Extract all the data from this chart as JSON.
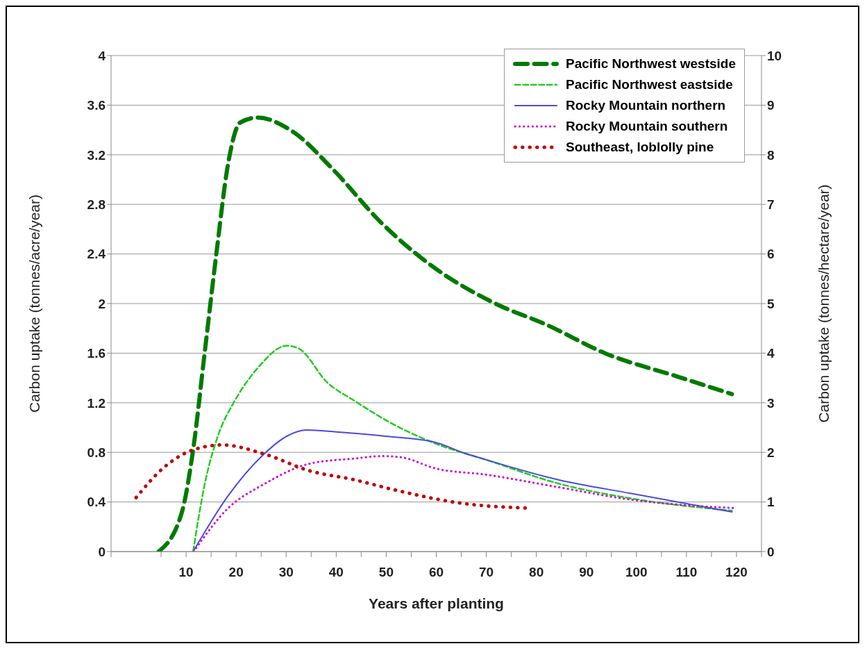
{
  "chart_data": {
    "type": "line",
    "xlabel": "Years after planting",
    "ylabel": "Carbon uptake (tonnes/acre/year)",
    "y2label": "Carbon uptake (tonnes/hectare/year)",
    "xlim": [
      -5,
      125
    ],
    "xticks": [
      {
        "value": -5,
        "label": null
      },
      {
        "value": 5,
        "label": null
      },
      10,
      {
        "value": 15,
        "label": null
      },
      20,
      {
        "value": 25,
        "label": null
      },
      30,
      {
        "value": 35,
        "label": null
      },
      40,
      {
        "value": 45,
        "label": null
      },
      50,
      {
        "value": 55,
        "label": null
      },
      60,
      {
        "value": 65,
        "label": null
      },
      70,
      {
        "value": 75,
        "label": null
      },
      80,
      {
        "value": 85,
        "label": null
      },
      90,
      {
        "value": 95,
        "label": null
      },
      100,
      {
        "value": 105,
        "label": null
      },
      110,
      {
        "value": 115,
        "label": null
      },
      120,
      {
        "value": 125,
        "label": null
      }
    ],
    "ylim": [
      0,
      4
    ],
    "yticks": [
      0,
      0.4,
      0.8,
      1.2,
      1.6,
      2,
      2.4,
      2.8,
      3.2,
      3.6,
      4
    ],
    "y2lim": [
      0,
      10
    ],
    "y2ticks": [
      0,
      1,
      2,
      3,
      4,
      5,
      6,
      7,
      8,
      9,
      10
    ],
    "grid": "y",
    "legend": "top right",
    "marker": "none",
    "series": [
      {
        "name": "Pacific Northwest westside",
        "color": "#007a00",
        "line_style": "dashed",
        "x": [
          4.5,
          9.1,
          11.4,
          13.7,
          16.1,
          18.4,
          20.8,
          24.3,
          31.2,
          39.4,
          48.8,
          58.9,
          71.8,
          82,
          93.7,
          108.3,
          119.1
        ],
        "values": [
          0,
          0.31,
          0.82,
          1.6,
          2.42,
          3.13,
          3.46,
          3.5,
          3.39,
          3.08,
          2.66,
          2.31,
          2.0,
          1.83,
          1.6,
          1.41,
          1.27
        ]
      },
      {
        "name": "Pacific Northwest eastside",
        "color": "#22cc22",
        "line_style": "dashed",
        "x": [
          11.4,
          13.7,
          16.6,
          19.5,
          24.3,
          30.1,
          32.4,
          38.3,
          43.5,
          50.8,
          59.9,
          70,
          84.3,
          98.7,
          119.1
        ],
        "values": [
          0,
          0.54,
          0.96,
          1.2,
          1.48,
          1.66,
          1.64,
          1.36,
          1.22,
          1.04,
          0.87,
          0.74,
          0.55,
          0.43,
          0.33
        ]
      },
      {
        "name": "Rocky Mountain northern",
        "color": "#4a4adf",
        "line_style": "solid",
        "x": [
          11.4,
          18.4,
          25.4,
          30.1,
          34.1,
          40,
          49.9,
          59.9,
          65.2,
          70,
          84.3,
          98.7,
          119.1
        ],
        "values": [
          0,
          0.45,
          0.78,
          0.93,
          0.98,
          0.965,
          0.93,
          0.88,
          0.8,
          0.74,
          0.58,
          0.47,
          0.32
        ]
      },
      {
        "name": "Rocky Mountain southern",
        "color": "#cc00cc",
        "line_style": "dotted",
        "x": [
          11.5,
          18.4,
          25.4,
          34.8,
          43.5,
          49.3,
          53,
          59.9,
          70,
          84.3,
          98.7,
          119.8
        ],
        "values": [
          0,
          0.35,
          0.54,
          0.71,
          0.75,
          0.77,
          0.76,
          0.67,
          0.62,
          0.52,
          0.42,
          0.35
        ]
      },
      {
        "name": "Southeast, loblolly pine",
        "color": "#c00000",
        "line_style": "dotted",
        "x": [
          0,
          5.6,
          11.4,
          17.2,
          25.4,
          34.8,
          43.5,
          51.4,
          65,
          78.7
        ],
        "values": [
          0.435,
          0.68,
          0.82,
          0.86,
          0.79,
          0.65,
          0.58,
          0.5,
          0.39,
          0.35
        ]
      }
    ]
  }
}
